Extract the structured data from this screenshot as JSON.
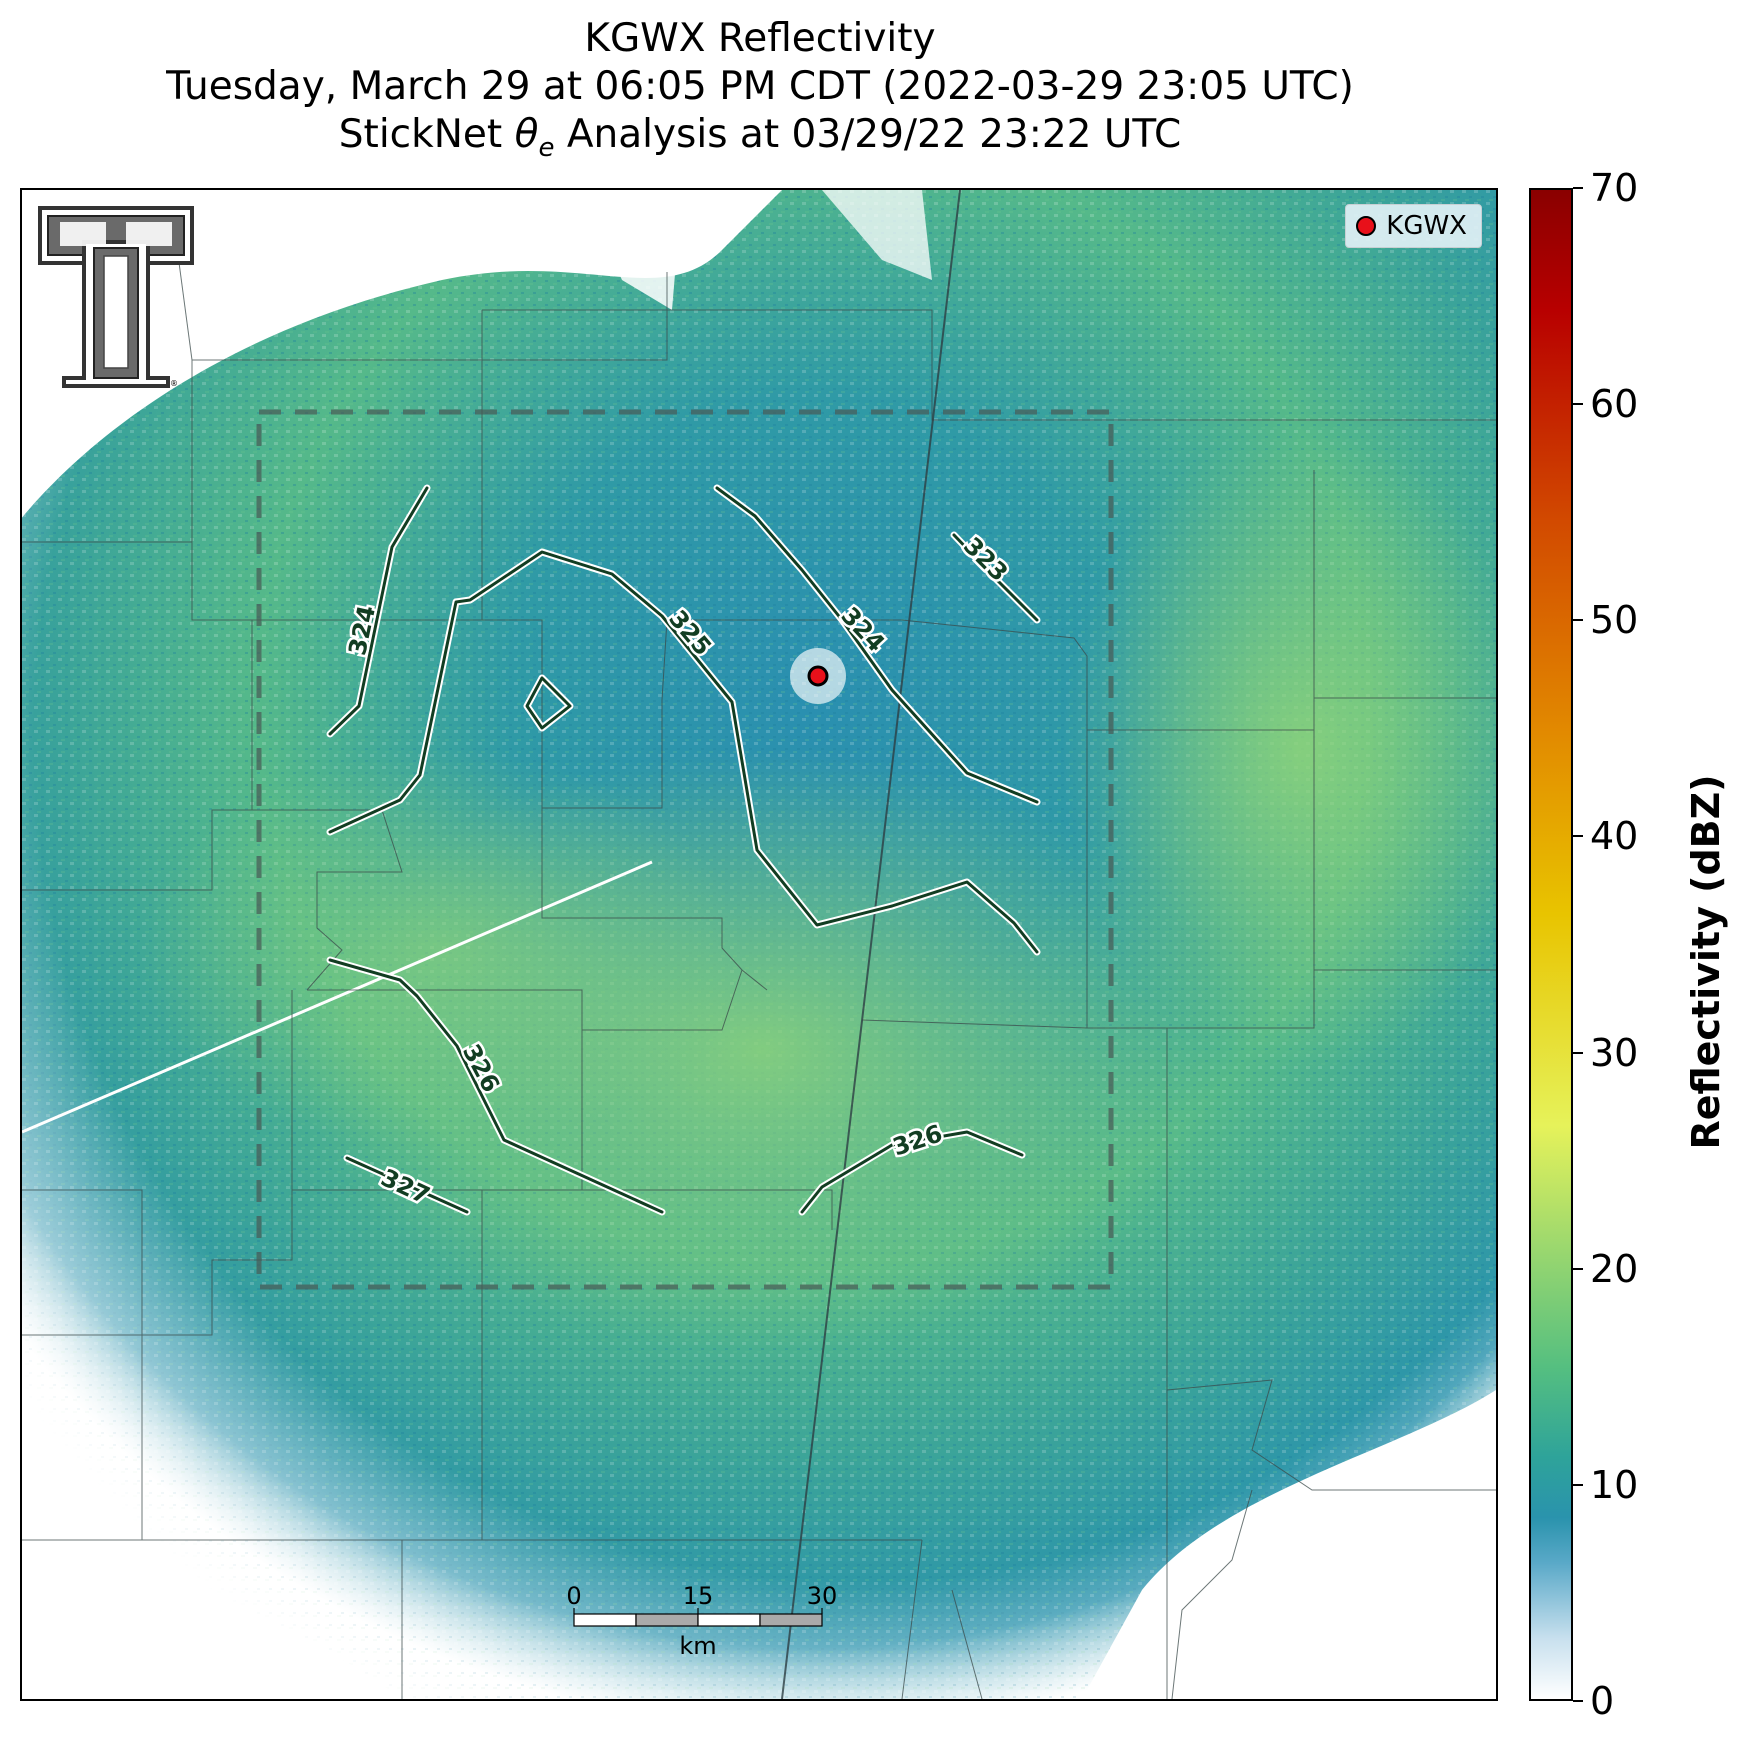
{
  "title": {
    "line1": "KGWX Reflectivity",
    "line2": "Tuesday, March 29 at 06:05 PM CDT (2022-03-29 23:05 UTC)",
    "line3_prefix": "StickNet ",
    "line3_symbol": "θ",
    "line3_sub": "e",
    "line3_suffix": " Analysis at 03/29/22 23:22 UTC"
  },
  "legend": {
    "label": "KGWX",
    "marker_color": "#e8101a"
  },
  "radar_site": "KGWX",
  "contours": {
    "color": "#123d22",
    "labels": [
      "324",
      "325",
      "324",
      "323",
      "326",
      "326",
      "327"
    ]
  },
  "colorbar": {
    "title": "Reflectivity (dBZ)",
    "min": 0,
    "max": 70,
    "ticks": [
      "0",
      "10",
      "20",
      "30",
      "40",
      "50",
      "60",
      "70"
    ]
  },
  "scale_bar": {
    "ticks": [
      "0",
      "15",
      "30"
    ],
    "unit": "km"
  },
  "logo": {
    "name": "Texas Tech Double T"
  },
  "colors": {
    "echo_base": "#2a93ad",
    "echo_green": "#7ccf83",
    "analysis_box": "#4a5a55"
  }
}
